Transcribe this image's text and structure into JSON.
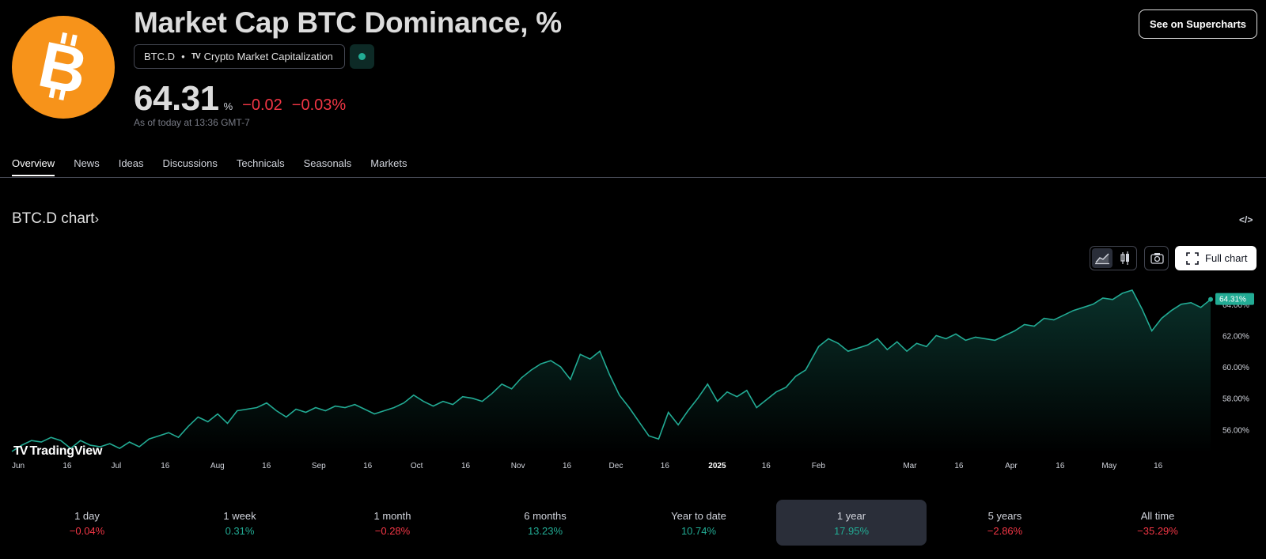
{
  "header": {
    "title": "Market Cap BTC Dominance, %",
    "symbol": "BTC.D",
    "tv_mark": "TV",
    "source": "Crypto Market Capitalization",
    "price": "64.31",
    "unit": "%",
    "change_abs": "−0.02",
    "change_pct": "−0.03%",
    "as_of": "As of today at 13:36 GMT-7",
    "supercharts_label": "See on Supercharts"
  },
  "tabs": [
    "Overview",
    "News",
    "Ideas",
    "Discussions",
    "Technicals",
    "Seasonals",
    "Markets"
  ],
  "chart_section": {
    "title": "BTC.D chart",
    "embed_label": "</>",
    "full_chart_label": "Full chart",
    "brand": "TradingView",
    "brand_mark": "TV"
  },
  "colors": {
    "line": "#22ab94",
    "negative": "#f23645",
    "positive": "#22ab94",
    "bitcoin": "#f7931a"
  },
  "chart_data": {
    "type": "area",
    "y_axis": {
      "side": "right",
      "ticks": [
        "56.00%",
        "58.00%",
        "60.00%",
        "62.00%",
        "64.00%"
      ],
      "tick_values": [
        56,
        58,
        60,
        62,
        64
      ],
      "range": [
        54.5,
        65.1
      ]
    },
    "x_ticks": [
      {
        "label": "Jun",
        "date": "2024-06-01",
        "bold": false
      },
      {
        "label": "16",
        "date": "2024-06-16",
        "bold": false
      },
      {
        "label": "Jul",
        "date": "2024-07-01",
        "bold": false
      },
      {
        "label": "16",
        "date": "2024-07-16",
        "bold": false
      },
      {
        "label": "Aug",
        "date": "2024-08-01",
        "bold": false
      },
      {
        "label": "16",
        "date": "2024-08-16",
        "bold": false
      },
      {
        "label": "Sep",
        "date": "2024-09-01",
        "bold": false
      },
      {
        "label": "16",
        "date": "2024-09-16",
        "bold": false
      },
      {
        "label": "Oct",
        "date": "2024-10-01",
        "bold": false
      },
      {
        "label": "16",
        "date": "2024-10-16",
        "bold": false
      },
      {
        "label": "Nov",
        "date": "2024-11-01",
        "bold": false
      },
      {
        "label": "16",
        "date": "2024-11-16",
        "bold": false
      },
      {
        "label": "Dec",
        "date": "2024-12-01",
        "bold": false
      },
      {
        "label": "16",
        "date": "2024-12-16",
        "bold": false
      },
      {
        "label": "2025",
        "date": "2025-01-01",
        "bold": true
      },
      {
        "label": "16",
        "date": "2025-01-16",
        "bold": false
      },
      {
        "label": "Feb",
        "date": "2025-02-01",
        "bold": false
      },
      {
        "label": "Mar",
        "date": "2025-03-01",
        "bold": false
      },
      {
        "label": "16",
        "date": "2025-03-16",
        "bold": false
      },
      {
        "label": "Apr",
        "date": "2025-04-01",
        "bold": false
      },
      {
        "label": "16",
        "date": "2025-04-16",
        "bold": false
      },
      {
        "label": "May",
        "date": "2025-05-01",
        "bold": false
      },
      {
        "label": "16",
        "date": "2025-05-16",
        "bold": false
      }
    ],
    "last_value_label": "64.31%",
    "series": [
      {
        "points": [
          [
            "2024-06-01",
            54.6
          ],
          [
            "2024-06-04",
            55.0
          ],
          [
            "2024-06-07",
            55.3
          ],
          [
            "2024-06-10",
            55.2
          ],
          [
            "2024-06-13",
            55.5
          ],
          [
            "2024-06-16",
            55.3
          ],
          [
            "2024-06-19",
            54.8
          ],
          [
            "2024-06-22",
            55.3
          ],
          [
            "2024-06-25",
            55.0
          ],
          [
            "2024-06-28",
            54.9
          ],
          [
            "2024-07-01",
            55.1
          ],
          [
            "2024-07-04",
            54.8
          ],
          [
            "2024-07-07",
            55.2
          ],
          [
            "2024-07-10",
            54.9
          ],
          [
            "2024-07-13",
            55.4
          ],
          [
            "2024-07-16",
            55.6
          ],
          [
            "2024-07-19",
            55.8
          ],
          [
            "2024-07-22",
            55.5
          ],
          [
            "2024-07-25",
            56.2
          ],
          [
            "2024-07-28",
            56.8
          ],
          [
            "2024-07-31",
            56.5
          ],
          [
            "2024-08-03",
            57.0
          ],
          [
            "2024-08-06",
            56.4
          ],
          [
            "2024-08-09",
            57.2
          ],
          [
            "2024-08-12",
            57.3
          ],
          [
            "2024-08-15",
            57.4
          ],
          [
            "2024-08-18",
            57.7
          ],
          [
            "2024-08-21",
            57.2
          ],
          [
            "2024-08-24",
            56.8
          ],
          [
            "2024-08-27",
            57.3
          ],
          [
            "2024-08-30",
            57.1
          ],
          [
            "2024-09-02",
            57.4
          ],
          [
            "2024-09-05",
            57.2
          ],
          [
            "2024-09-08",
            57.5
          ],
          [
            "2024-09-11",
            57.4
          ],
          [
            "2024-09-14",
            57.6
          ],
          [
            "2024-09-17",
            57.3
          ],
          [
            "2024-09-20",
            57.0
          ],
          [
            "2024-09-23",
            57.2
          ],
          [
            "2024-09-26",
            57.4
          ],
          [
            "2024-09-29",
            57.7
          ],
          [
            "2024-10-02",
            58.2
          ],
          [
            "2024-10-05",
            57.8
          ],
          [
            "2024-10-08",
            57.5
          ],
          [
            "2024-10-11",
            57.8
          ],
          [
            "2024-10-14",
            57.6
          ],
          [
            "2024-10-17",
            58.1
          ],
          [
            "2024-10-20",
            58.0
          ],
          [
            "2024-10-23",
            57.8
          ],
          [
            "2024-10-26",
            58.3
          ],
          [
            "2024-10-29",
            58.9
          ],
          [
            "2024-11-01",
            58.6
          ],
          [
            "2024-11-04",
            59.3
          ],
          [
            "2024-11-07",
            59.8
          ],
          [
            "2024-11-10",
            60.2
          ],
          [
            "2024-11-13",
            60.4
          ],
          [
            "2024-11-16",
            60.0
          ],
          [
            "2024-11-19",
            59.2
          ],
          [
            "2024-11-22",
            60.8
          ],
          [
            "2024-11-25",
            60.5
          ],
          [
            "2024-11-28",
            61.0
          ],
          [
            "2024-12-01",
            59.5
          ],
          [
            "2024-12-04",
            58.2
          ],
          [
            "2024-12-07",
            57.4
          ],
          [
            "2024-12-10",
            56.5
          ],
          [
            "2024-12-13",
            55.6
          ],
          [
            "2024-12-16",
            55.4
          ],
          [
            "2024-12-19",
            57.1
          ],
          [
            "2024-12-22",
            56.3
          ],
          [
            "2024-12-25",
            57.2
          ],
          [
            "2024-12-28",
            58.0
          ],
          [
            "2024-12-31",
            58.9
          ],
          [
            "2025-01-03",
            57.8
          ],
          [
            "2025-01-06",
            58.4
          ],
          [
            "2025-01-09",
            58.1
          ],
          [
            "2025-01-12",
            58.5
          ],
          [
            "2025-01-15",
            57.4
          ],
          [
            "2025-01-18",
            57.9
          ],
          [
            "2025-01-21",
            58.4
          ],
          [
            "2025-01-24",
            58.7
          ],
          [
            "2025-01-27",
            59.4
          ],
          [
            "2025-01-30",
            59.8
          ],
          [
            "2025-02-03",
            61.3
          ],
          [
            "2025-02-06",
            61.8
          ],
          [
            "2025-02-09",
            61.5
          ],
          [
            "2025-02-12",
            61.0
          ],
          [
            "2025-02-15",
            61.2
          ],
          [
            "2025-02-18",
            61.4
          ],
          [
            "2025-02-21",
            61.8
          ],
          [
            "2025-02-24",
            61.1
          ],
          [
            "2025-02-27",
            61.6
          ],
          [
            "2025-03-02",
            61.0
          ],
          [
            "2025-03-05",
            61.5
          ],
          [
            "2025-03-08",
            61.3
          ],
          [
            "2025-03-11",
            62.0
          ],
          [
            "2025-03-14",
            61.8
          ],
          [
            "2025-03-17",
            62.1
          ],
          [
            "2025-03-20",
            61.7
          ],
          [
            "2025-03-23",
            61.9
          ],
          [
            "2025-03-26",
            61.8
          ],
          [
            "2025-03-29",
            61.7
          ],
          [
            "2025-04-01",
            62.0
          ],
          [
            "2025-04-04",
            62.3
          ],
          [
            "2025-04-07",
            62.7
          ],
          [
            "2025-04-10",
            62.6
          ],
          [
            "2025-04-13",
            63.1
          ],
          [
            "2025-04-16",
            63.0
          ],
          [
            "2025-04-19",
            63.3
          ],
          [
            "2025-04-22",
            63.6
          ],
          [
            "2025-04-25",
            63.8
          ],
          [
            "2025-04-28",
            64.0
          ],
          [
            "2025-05-01",
            64.4
          ],
          [
            "2025-05-04",
            64.3
          ],
          [
            "2025-05-07",
            64.7
          ],
          [
            "2025-05-10",
            64.9
          ],
          [
            "2025-05-13",
            63.7
          ],
          [
            "2025-05-16",
            62.3
          ],
          [
            "2025-05-19",
            63.1
          ],
          [
            "2025-05-22",
            63.6
          ],
          [
            "2025-05-25",
            64.0
          ],
          [
            "2025-05-28",
            64.1
          ],
          [
            "2025-05-31",
            63.8
          ],
          [
            "2025-06-03",
            64.31
          ]
        ]
      }
    ]
  },
  "periods": [
    {
      "label": "1 day",
      "value": "−0.04%",
      "sign": "neg",
      "active": false
    },
    {
      "label": "1 week",
      "value": "0.31%",
      "sign": "pos",
      "active": false
    },
    {
      "label": "1 month",
      "value": "−0.28%",
      "sign": "neg",
      "active": false
    },
    {
      "label": "6 months",
      "value": "13.23%",
      "sign": "pos",
      "active": false
    },
    {
      "label": "Year to date",
      "value": "10.74%",
      "sign": "pos",
      "active": false
    },
    {
      "label": "1 year",
      "value": "17.95%",
      "sign": "pos",
      "active": true
    },
    {
      "label": "5 years",
      "value": "−2.86%",
      "sign": "neg",
      "active": false
    },
    {
      "label": "All time",
      "value": "−35.29%",
      "sign": "neg",
      "active": false
    }
  ]
}
